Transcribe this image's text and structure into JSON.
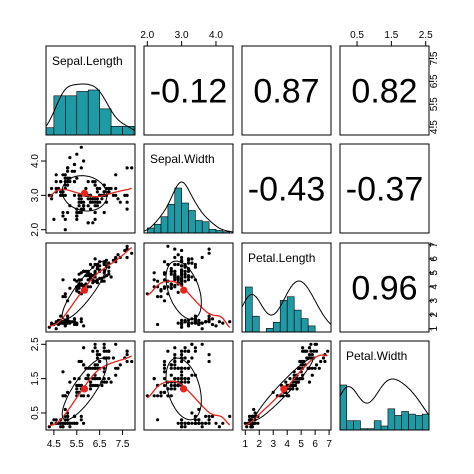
{
  "chart_data": {
    "type": "scatter",
    "variables": [
      "Sepal.Length",
      "Sepal.Width",
      "Petal.Length",
      "Petal.Width"
    ],
    "ranges": [
      [
        4.3,
        7.9
      ],
      [
        2.0,
        4.4
      ],
      [
        1.0,
        6.9
      ],
      [
        0.1,
        2.5
      ]
    ],
    "ticks": [
      [
        4.5,
        5.5,
        6.5,
        7.5
      ],
      [
        2.0,
        3.0,
        4.0
      ],
      [
        1,
        2,
        3,
        4,
        5,
        6,
        7
      ],
      [
        0.5,
        1.5,
        2.5
      ]
    ],
    "tick_labels": [
      [
        "4.5",
        "5.5",
        "6.5",
        "7.5"
      ],
      [
        "2.0",
        "3.0",
        "4.0"
      ],
      [
        "1",
        "2",
        "3",
        "4",
        "5",
        "6",
        "7"
      ],
      [
        "0.5",
        "1.5",
        "2.5"
      ]
    ],
    "correlations": [
      {
        "row": 0,
        "col": 1,
        "label": "-0.12",
        "value": -0.12
      },
      {
        "row": 0,
        "col": 2,
        "label": "0.87",
        "value": 0.87
      },
      {
        "row": 0,
        "col": 3,
        "label": "0.82",
        "value": 0.82
      },
      {
        "row": 1,
        "col": 2,
        "label": "-0.43",
        "value": -0.43
      },
      {
        "row": 1,
        "col": 3,
        "label": "-0.37",
        "value": -0.37
      },
      {
        "row": 2,
        "col": 3,
        "label": "0.96",
        "value": 0.96
      }
    ],
    "histograms": [
      {
        "start": 4.0,
        "width": 0.5,
        "counts": [
          5,
          27,
          27,
          30,
          31,
          18,
          6,
          6
        ]
      },
      {
        "start": 2.0,
        "width": 0.2,
        "counts": [
          4,
          7,
          13,
          23,
          36,
          24,
          18,
          10,
          9,
          3,
          2,
          1
        ]
      },
      {
        "start": 1.0,
        "width": 0.5,
        "counts": [
          37,
          13,
          0,
          3,
          8,
          26,
          29,
          18,
          11,
          5
        ]
      },
      {
        "start": 0.0,
        "width": 0.2,
        "counts": [
          34,
          7,
          7,
          1,
          1,
          7,
          3,
          16,
          11,
          14,
          12,
          11,
          12,
          6,
          5,
          3
        ]
      }
    ],
    "means": [
      5.84,
      3.06,
      3.76,
      1.2
    ],
    "scatter_points": [
      [
        5.1,
        3.5,
        1.4,
        0.2
      ],
      [
        4.9,
        3.0,
        1.4,
        0.2
      ],
      [
        4.7,
        3.2,
        1.3,
        0.2
      ],
      [
        4.6,
        3.1,
        1.5,
        0.2
      ],
      [
        5.0,
        3.6,
        1.4,
        0.2
      ],
      [
        5.4,
        3.9,
        1.7,
        0.4
      ],
      [
        4.6,
        3.4,
        1.4,
        0.3
      ],
      [
        5.0,
        3.4,
        1.5,
        0.2
      ],
      [
        4.4,
        2.9,
        1.4,
        0.2
      ],
      [
        4.9,
        3.1,
        1.5,
        0.1
      ],
      [
        5.4,
        3.7,
        1.5,
        0.2
      ],
      [
        4.8,
        3.4,
        1.6,
        0.2
      ],
      [
        4.8,
        3.0,
        1.4,
        0.1
      ],
      [
        4.3,
        3.0,
        1.1,
        0.1
      ],
      [
        5.8,
        4.0,
        1.2,
        0.2
      ],
      [
        5.7,
        4.4,
        1.5,
        0.4
      ],
      [
        5.4,
        3.9,
        1.3,
        0.4
      ],
      [
        5.1,
        3.5,
        1.4,
        0.3
      ],
      [
        5.7,
        3.8,
        1.7,
        0.3
      ],
      [
        5.1,
        3.8,
        1.5,
        0.3
      ],
      [
        5.4,
        3.4,
        1.7,
        0.2
      ],
      [
        5.1,
        3.7,
        1.5,
        0.4
      ],
      [
        4.6,
        3.6,
        1.0,
        0.2
      ],
      [
        5.1,
        3.3,
        1.7,
        0.5
      ],
      [
        4.8,
        3.4,
        1.9,
        0.2
      ],
      [
        5.0,
        3.0,
        1.6,
        0.2
      ],
      [
        5.0,
        3.4,
        1.6,
        0.4
      ],
      [
        5.2,
        3.5,
        1.5,
        0.2
      ],
      [
        5.2,
        3.4,
        1.4,
        0.2
      ],
      [
        4.7,
        3.2,
        1.6,
        0.2
      ],
      [
        4.8,
        3.1,
        1.6,
        0.2
      ],
      [
        5.4,
        3.4,
        1.5,
        0.4
      ],
      [
        5.2,
        4.1,
        1.5,
        0.1
      ],
      [
        5.5,
        4.2,
        1.4,
        0.2
      ],
      [
        4.9,
        3.1,
        1.5,
        0.2
      ],
      [
        5.0,
        3.2,
        1.2,
        0.2
      ],
      [
        5.5,
        3.5,
        1.3,
        0.2
      ],
      [
        4.9,
        3.6,
        1.4,
        0.1
      ],
      [
        4.4,
        3.0,
        1.3,
        0.2
      ],
      [
        5.1,
        3.4,
        1.5,
        0.2
      ],
      [
        5.0,
        3.5,
        1.3,
        0.3
      ],
      [
        4.5,
        2.3,
        1.3,
        0.3
      ],
      [
        4.4,
        3.2,
        1.3,
        0.2
      ],
      [
        5.0,
        3.5,
        1.6,
        0.6
      ],
      [
        5.1,
        3.8,
        1.9,
        0.4
      ],
      [
        4.8,
        3.0,
        1.4,
        0.3
      ],
      [
        5.1,
        3.8,
        1.6,
        0.2
      ],
      [
        4.6,
        3.2,
        1.4,
        0.2
      ],
      [
        5.3,
        3.7,
        1.5,
        0.2
      ],
      [
        5.0,
        3.3,
        1.4,
        0.2
      ],
      [
        7.0,
        3.2,
        4.7,
        1.4
      ],
      [
        6.4,
        3.2,
        4.5,
        1.5
      ],
      [
        6.9,
        3.1,
        4.9,
        1.5
      ],
      [
        5.5,
        2.3,
        4.0,
        1.3
      ],
      [
        6.5,
        2.8,
        4.6,
        1.5
      ],
      [
        5.7,
        2.8,
        4.5,
        1.3
      ],
      [
        6.3,
        3.3,
        4.7,
        1.6
      ],
      [
        4.9,
        2.4,
        3.3,
        1.0
      ],
      [
        6.6,
        2.9,
        4.6,
        1.3
      ],
      [
        5.2,
        2.7,
        3.9,
        1.4
      ],
      [
        5.0,
        2.0,
        3.5,
        1.0
      ],
      [
        5.9,
        3.0,
        4.2,
        1.5
      ],
      [
        6.0,
        2.2,
        4.0,
        1.0
      ],
      [
        6.1,
        2.9,
        4.7,
        1.4
      ],
      [
        5.6,
        2.9,
        3.6,
        1.3
      ],
      [
        6.7,
        3.1,
        4.4,
        1.4
      ],
      [
        5.6,
        3.0,
        4.5,
        1.5
      ],
      [
        5.8,
        2.7,
        4.1,
        1.0
      ],
      [
        6.2,
        2.2,
        4.5,
        1.5
      ],
      [
        5.6,
        2.5,
        3.9,
        1.1
      ],
      [
        5.9,
        3.2,
        4.8,
        1.8
      ],
      [
        6.1,
        2.8,
        4.0,
        1.3
      ],
      [
        6.3,
        2.5,
        4.9,
        1.5
      ],
      [
        6.1,
        2.8,
        4.7,
        1.2
      ],
      [
        6.4,
        2.9,
        4.3,
        1.3
      ],
      [
        6.6,
        3.0,
        4.4,
        1.4
      ],
      [
        6.8,
        2.8,
        4.8,
        1.4
      ],
      [
        6.7,
        3.0,
        5.0,
        1.7
      ],
      [
        6.0,
        2.9,
        4.5,
        1.5
      ],
      [
        5.7,
        2.6,
        3.5,
        1.0
      ],
      [
        5.5,
        2.4,
        3.8,
        1.1
      ],
      [
        5.5,
        2.4,
        3.7,
        1.0
      ],
      [
        5.8,
        2.7,
        3.9,
        1.2
      ],
      [
        6.0,
        2.7,
        5.1,
        1.6
      ],
      [
        5.4,
        3.0,
        4.5,
        1.5
      ],
      [
        6.0,
        3.4,
        4.5,
        1.6
      ],
      [
        6.7,
        3.1,
        4.7,
        1.5
      ],
      [
        6.3,
        2.3,
        4.4,
        1.3
      ],
      [
        5.6,
        3.0,
        4.1,
        1.3
      ],
      [
        5.5,
        2.5,
        4.0,
        1.3
      ],
      [
        5.5,
        2.6,
        4.4,
        1.2
      ],
      [
        6.1,
        3.0,
        4.6,
        1.4
      ],
      [
        5.8,
        2.6,
        4.0,
        1.2
      ],
      [
        5.0,
        2.3,
        3.3,
        1.0
      ],
      [
        5.6,
        2.7,
        4.2,
        1.3
      ],
      [
        5.7,
        3.0,
        4.2,
        1.2
      ],
      [
        5.7,
        2.9,
        4.2,
        1.3
      ],
      [
        6.2,
        2.9,
        4.3,
        1.3
      ],
      [
        5.1,
        2.5,
        3.0,
        1.1
      ],
      [
        5.7,
        2.8,
        4.1,
        1.3
      ],
      [
        6.3,
        3.3,
        6.0,
        2.5
      ],
      [
        5.8,
        2.7,
        5.1,
        1.9
      ],
      [
        7.1,
        3.0,
        5.9,
        2.1
      ],
      [
        6.3,
        2.9,
        5.6,
        1.8
      ],
      [
        6.5,
        3.0,
        5.8,
        2.2
      ],
      [
        7.6,
        3.0,
        6.6,
        2.1
      ],
      [
        4.9,
        2.5,
        4.5,
        1.7
      ],
      [
        7.3,
        2.9,
        6.3,
        1.8
      ],
      [
        6.7,
        2.5,
        5.8,
        1.8
      ],
      [
        7.2,
        3.6,
        6.1,
        2.5
      ],
      [
        6.5,
        3.2,
        5.1,
        2.0
      ],
      [
        6.4,
        2.7,
        5.3,
        1.9
      ],
      [
        6.8,
        3.0,
        5.5,
        2.1
      ],
      [
        5.7,
        2.5,
        5.0,
        2.0
      ],
      [
        5.8,
        2.8,
        5.1,
        2.4
      ],
      [
        6.4,
        3.2,
        5.3,
        2.3
      ],
      [
        6.5,
        3.0,
        5.5,
        1.8
      ],
      [
        7.7,
        3.8,
        6.7,
        2.2
      ],
      [
        7.7,
        2.6,
        6.9,
        2.3
      ],
      [
        6.0,
        2.2,
        5.0,
        1.5
      ],
      [
        6.9,
        3.2,
        5.7,
        2.3
      ],
      [
        5.6,
        2.8,
        4.9,
        2.0
      ],
      [
        7.7,
        2.8,
        6.7,
        2.0
      ],
      [
        6.3,
        2.7,
        4.9,
        1.8
      ],
      [
        6.7,
        3.3,
        5.7,
        2.1
      ],
      [
        7.2,
        3.2,
        6.0,
        1.8
      ],
      [
        6.2,
        2.8,
        4.8,
        1.8
      ],
      [
        6.1,
        3.0,
        4.9,
        1.8
      ],
      [
        6.4,
        2.8,
        5.6,
        2.1
      ],
      [
        7.2,
        3.0,
        5.8,
        1.6
      ],
      [
        7.4,
        2.8,
        6.1,
        1.9
      ],
      [
        7.9,
        3.8,
        6.4,
        2.0
      ],
      [
        6.4,
        2.8,
        5.6,
        2.2
      ],
      [
        6.3,
        2.8,
        5.1,
        1.5
      ],
      [
        6.1,
        2.6,
        5.6,
        1.4
      ],
      [
        7.7,
        3.0,
        6.1,
        2.3
      ],
      [
        6.3,
        3.4,
        5.6,
        2.4
      ],
      [
        6.4,
        3.1,
        5.5,
        1.8
      ],
      [
        6.0,
        3.0,
        4.8,
        1.8
      ],
      [
        6.9,
        3.1,
        5.4,
        2.1
      ],
      [
        6.7,
        3.1,
        5.6,
        2.4
      ],
      [
        6.9,
        3.1,
        5.1,
        2.3
      ],
      [
        5.8,
        2.7,
        5.1,
        1.9
      ],
      [
        6.8,
        3.2,
        5.9,
        2.3
      ],
      [
        6.7,
        3.3,
        5.7,
        2.5
      ],
      [
        6.7,
        3.0,
        5.2,
        2.3
      ],
      [
        6.3,
        2.5,
        5.0,
        1.9
      ],
      [
        6.5,
        3.0,
        5.2,
        2.0
      ],
      [
        6.2,
        3.4,
        5.4,
        2.3
      ],
      [
        5.9,
        3.0,
        5.1,
        1.8
      ]
    ]
  }
}
